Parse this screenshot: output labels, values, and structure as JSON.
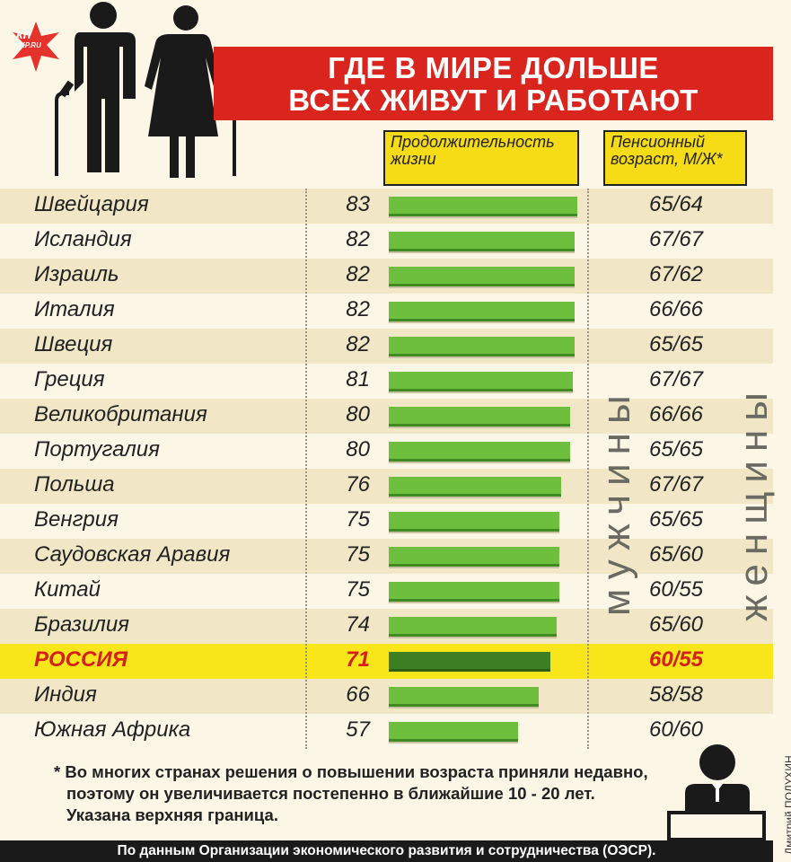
{
  "logo": {
    "main": "кп",
    "sub": "KP.RU"
  },
  "title": {
    "line1": "ГДЕ В МИРЕ ДОЛЬШЕ",
    "line2": "ВСЕХ ЖИВУТ И РАБОТАЮТ"
  },
  "headers": {
    "life": [
      "Продолжительность",
      "жизни"
    ],
    "pension": [
      "Пенсионный",
      "возраст, М/Ж*"
    ]
  },
  "side_labels": {
    "men": "мужчины",
    "women": "женщины"
  },
  "colors": {
    "banner": "#d9251d",
    "bar": "#6dbf3d",
    "highlight_bar": "#3d7f23",
    "highlight_row": "#f8e61a",
    "highlight_text": "#d3201a"
  },
  "chart_data": {
    "type": "bar",
    "orientation": "horizontal",
    "categories": [
      "Швейцария",
      "Исландия",
      "Израиль",
      "Италия",
      "Швеция",
      "Греция",
      "Великобритания",
      "Португалия",
      "Польша",
      "Венгрия",
      "Саудовская Аравия",
      "Китай",
      "Бразилия",
      "РОССИЯ",
      "Индия",
      "Южная Африка"
    ],
    "values": [
      83,
      82,
      82,
      82,
      82,
      81,
      80,
      80,
      76,
      75,
      75,
      75,
      74,
      71,
      66,
      57
    ],
    "labels": [
      "83",
      "82",
      "82",
      "82",
      "82",
      "81",
      "80",
      "80",
      "76",
      "75",
      "75",
      "75",
      "74",
      "71",
      "66",
      "57"
    ],
    "pension_age": [
      "65/64",
      "67/67",
      "67/62",
      "66/66",
      "65/65",
      "67/67",
      "66/66",
      "65/65",
      "67/67",
      "65/65",
      "65/60",
      "60/55",
      "65/60",
      "60/55",
      "58/58",
      "60/60"
    ],
    "highlight": "РОССИЯ",
    "xlim": [
      0,
      83
    ]
  },
  "footnote": {
    "line1": "* Во многих странах решения о повышении возраста приняли недавно,",
    "line2": "поэтому он увеличивается постепенно в ближайшие 10 - 20 лет.",
    "line3": "Указана верхняя граница."
  },
  "source": "По данным Организации экономического развития и сотрудничества (ОЭСР).",
  "author": "Дмитрий ПОЛУХИН"
}
